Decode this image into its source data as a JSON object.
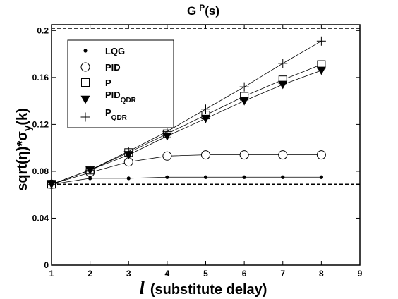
{
  "chart_data": {
    "type": "line",
    "title": "G",
    "title_sup": "P",
    "title_suffix": "(s)",
    "xlabel_symbol": "l",
    "xlabel_text": "(substitute delay)",
    "ylabel_parts": {
      "main": "sqrt(η)*σ",
      "sub": "y",
      "tail": "(k)"
    },
    "xlim": [
      1,
      9
    ],
    "ylim": [
      0,
      0.205
    ],
    "x_ticks": [
      1,
      2,
      3,
      4,
      5,
      6,
      7,
      8,
      9
    ],
    "x_tick_labels": [
      "1",
      "2",
      "3",
      "4",
      "5",
      "6",
      "7",
      "8",
      "9"
    ],
    "y_ticks": [
      0,
      0.04,
      0.08,
      0.12,
      0.16,
      0.2
    ],
    "y_tick_labels": [
      "0",
      "0.04",
      "0.08",
      "0.12",
      "0.16",
      "0.2"
    ],
    "reference_lines": [
      0.202,
      0.069
    ],
    "grid": false,
    "legend_position": "top-left",
    "x": [
      1,
      2,
      3,
      4,
      5,
      6,
      7,
      8
    ],
    "series": [
      {
        "name": "LQG",
        "name_sub": "",
        "marker": "dot",
        "values": [
          0.069,
          0.074,
          0.074,
          0.075,
          0.075,
          0.075,
          0.075,
          0.075
        ]
      },
      {
        "name": "PID",
        "name_sub": "",
        "marker": "circle",
        "values": [
          0.069,
          0.079,
          0.088,
          0.093,
          0.094,
          0.094,
          0.094,
          0.094
        ]
      },
      {
        "name": "P",
        "name_sub": "",
        "marker": "square",
        "values": [
          0.069,
          0.081,
          0.096,
          0.112,
          0.128,
          0.144,
          0.158,
          0.171
        ]
      },
      {
        "name": "PID",
        "name_sub": "QDR",
        "marker": "triangle-down",
        "values": [
          0.069,
          0.081,
          0.094,
          0.11,
          0.125,
          0.14,
          0.154,
          0.166
        ]
      },
      {
        "name": "P",
        "name_sub": "QDR",
        "marker": "plus",
        "values": [
          0.069,
          0.081,
          0.097,
          0.114,
          0.133,
          0.152,
          0.172,
          0.191
        ]
      }
    ]
  }
}
